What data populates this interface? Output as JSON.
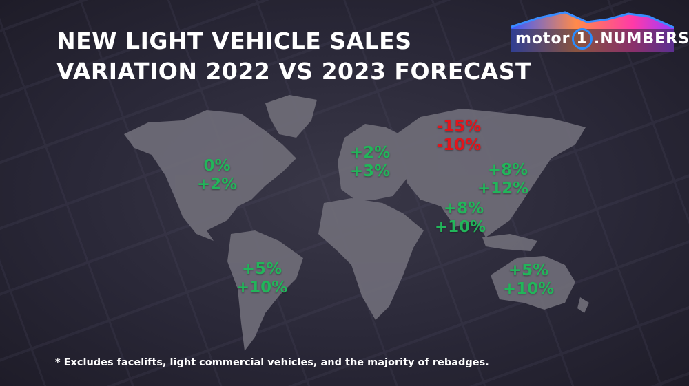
{
  "title": {
    "line1": "NEW LIGHT VEHICLE SALES",
    "line2": "VARIATION 2022 VS 2023 FORECAST"
  },
  "logo": {
    "text_left": "motor",
    "text_mark": "1",
    "text_right": ".NUMBERS"
  },
  "colors": {
    "positive": "#22b55a",
    "negative": "#e3141b",
    "land": "#6f6d78",
    "background": "#2a2838"
  },
  "regions": [
    {
      "name": "North America",
      "values": [
        "0%",
        "+2%"
      ],
      "trend": "pos"
    },
    {
      "name": "South America",
      "values": [
        "+5%",
        "+10%"
      ],
      "trend": "pos"
    },
    {
      "name": "Europe",
      "values": [
        "+2%",
        "+3%"
      ],
      "trend": "pos"
    },
    {
      "name": "Russia",
      "values": [
        "-15%",
        "-10%"
      ],
      "trend": "neg"
    },
    {
      "name": "China",
      "values": [
        "+8%",
        "+12%"
      ],
      "trend": "pos"
    },
    {
      "name": "India",
      "values": [
        "+8%",
        "+10%"
      ],
      "trend": "pos"
    },
    {
      "name": "Oceania",
      "values": [
        "+5%",
        "+10%"
      ],
      "trend": "pos"
    }
  ],
  "footnote": "* Excludes facelifts, light commercial vehicles, and the majority of rebadges."
}
